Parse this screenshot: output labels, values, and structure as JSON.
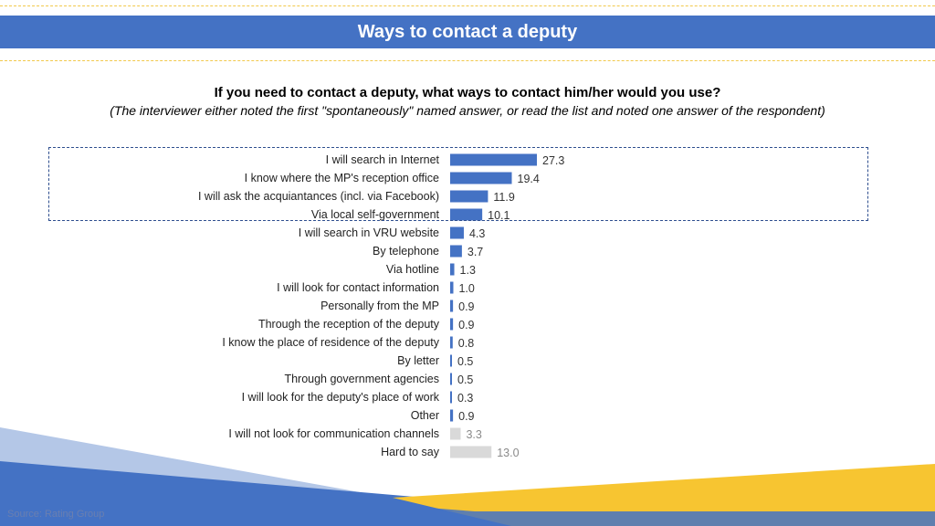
{
  "header": {
    "title": "Ways to contact a deputy"
  },
  "question": "If you need to contact a deputy, what ways to contact him/her would you use?",
  "note": "(The interviewer either noted the first \"spontaneously\" named answer, or read the list and noted one answer of the respondent)",
  "footer": {
    "source": "Source: Rating Group"
  },
  "colors": {
    "accent": "#4472c4",
    "muted": "#d9d9d9",
    "header": "#4472c4",
    "stripe": "#f7c531"
  },
  "chart_data": {
    "type": "bar",
    "orientation": "horizontal",
    "categories": [
      "I will search in Internet",
      "I know where the MP's reception office",
      "I will ask the acquiantances (incl. via Facebook)",
      "Via local self-government",
      "I will search in VRU website",
      "By telephone",
      "Via hotline",
      "I will look for contact information",
      "Personally from the MP",
      "Through the reception of the deputy",
      "I know the place of residence of the deputy",
      "By letter",
      "Through government agencies",
      "I will look for the deputy's place of work",
      "Other",
      "I will not look for communication channels",
      "Hard to say"
    ],
    "values": [
      27.3,
      19.4,
      11.9,
      10.1,
      4.3,
      3.7,
      1.3,
      1.0,
      0.9,
      0.9,
      0.8,
      0.5,
      0.5,
      0.3,
      0.9,
      3.3,
      13.0
    ],
    "value_labels": [
      "27.3",
      "19.4",
      "11.9",
      "10.1",
      "4.3",
      "3.7",
      "1.3",
      "1.0",
      "0.9",
      "0.9",
      "0.8",
      "0.5",
      "0.5",
      "0.3",
      "0.9",
      "3.3",
      "13.0"
    ],
    "muted_categories": [
      "I will not look for communication channels",
      "Hard to say"
    ],
    "highlighted_categories": [
      "I will search in Internet",
      "I know where the MP's reception office",
      "I will ask the acquiantances (incl. via Facebook)",
      "Via local self-government"
    ],
    "title": "",
    "xlabel": "",
    "ylabel": "",
    "xlim": [
      0,
      27.3
    ],
    "grid": false,
    "legend": "none"
  }
}
